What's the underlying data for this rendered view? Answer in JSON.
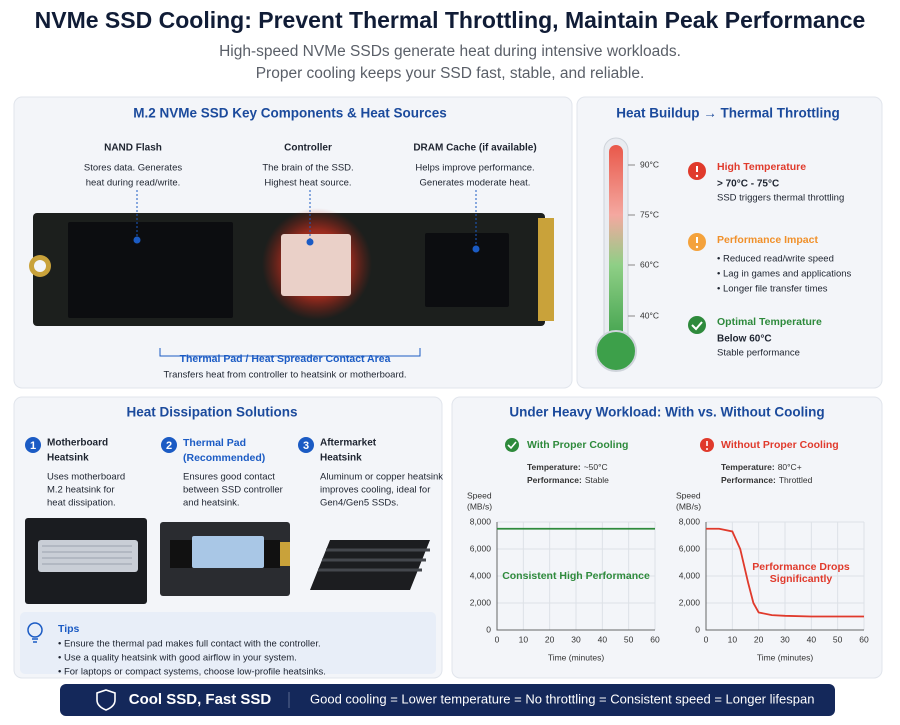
{
  "header": {
    "title": "NVMe SSD Cooling: Prevent Thermal Throttling, Maintain Peak Performance",
    "subtitle": [
      "High-speed NVMe SSDs generate heat during intensive workloads.",
      "Proper cooling keeps your SSD fast, stable, and reliable."
    ]
  },
  "components": {
    "title": "M.2 NVMe SSD Key Components & Heat Sources",
    "items": [
      {
        "name": "NAND Flash",
        "desc": [
          "Stores data. Generates",
          "heat during read/write."
        ]
      },
      {
        "name": "Controller",
        "desc": [
          "The brain of the SSD.",
          "Highest heat source."
        ]
      },
      {
        "name": "DRAM Cache (if available)",
        "desc": [
          "Helps improve performance.",
          "Generates moderate heat."
        ]
      }
    ],
    "callout": {
      "title": "Thermal Pad / Heat Spreader Contact Area",
      "desc": "Transfers heat from controller to heatsink or motherboard."
    }
  },
  "throttling": {
    "title": "Heat Buildup → Thermal Throttling",
    "scale": [
      "90°C",
      "75°C",
      "60°C",
      "40°C"
    ],
    "states": [
      {
        "title": "High Temperature",
        "range": "> 70°C - 75°C",
        "lines": [
          "SSD triggers thermal throttling"
        ]
      },
      {
        "title": "Performance Impact",
        "lines": [
          "• Reduced read/write speed",
          "• Lag in games and applications",
          "• Longer file transfer times"
        ]
      },
      {
        "title": "Optimal Temperature",
        "range": "Below 60°C",
        "lines": [
          "Stable performance"
        ]
      }
    ]
  },
  "solutions": {
    "title": "Heat Dissipation Solutions",
    "items": [
      {
        "number": "1",
        "title": [
          "Motherboard",
          "Heatsink"
        ],
        "desc": [
          "Uses motherboard",
          "M.2 heatsink for",
          "heat dissipation."
        ]
      },
      {
        "number": "2",
        "title": [
          "Thermal Pad",
          "(Recommended)"
        ],
        "desc": [
          "Ensures good contact",
          "between SSD controller",
          "and heatsink."
        ]
      },
      {
        "number": "3",
        "title": [
          "Aftermarket",
          "Heatsink"
        ],
        "desc": [
          "Aluminum or copper heatsink",
          "improves cooling, ideal for",
          "Gen4/Gen5 SSDs."
        ]
      }
    ],
    "tips": {
      "title": "Tips",
      "items": [
        "• Ensure the thermal pad makes full contact with the controller.",
        "• Use a quality heatsink with good airflow in your system.",
        "• For laptops or compact systems, choose low-profile heatsinks."
      ]
    }
  },
  "workload": {
    "title": "Under Heavy Workload: With vs. Without Cooling"
  },
  "chart_data": [
    {
      "type": "line",
      "title": "With Proper Cooling",
      "color": "#2e8a3c",
      "stats": [
        {
          "label": "Temperature:",
          "value": "~50°C"
        },
        {
          "label": "Performance:",
          "value": "Stable"
        }
      ],
      "y_label": [
        "Speed",
        "(MB/s)"
      ],
      "x_label": "Time (minutes)",
      "annotation": [
        "Consistent High Performance"
      ],
      "x": [
        0,
        10,
        20,
        30,
        40,
        50,
        60
      ],
      "values": [
        7500,
        7500,
        7500,
        7500,
        7500,
        7500,
        7500
      ],
      "xlim": [
        0,
        60
      ],
      "ylim": [
        0,
        8000
      ],
      "xticks": [
        0,
        10,
        20,
        30,
        40,
        50,
        60
      ],
      "yticks": [
        0,
        {
          "value": 2000,
          "label": "2,000"
        },
        {
          "value": 4000,
          "label": "4,000"
        },
        {
          "value": 6000,
          "label": "6,000"
        },
        {
          "value": 8000,
          "label": "8,000"
        }
      ],
      "grid": true
    },
    {
      "type": "line",
      "title": "Without Proper Cooling",
      "color": "#e03a2c",
      "stats": [
        {
          "label": "Temperature:",
          "value": "80°C+"
        },
        {
          "label": "Performance:",
          "value": "Throttled"
        }
      ],
      "y_label": [
        "Speed",
        "(MB/s)"
      ],
      "x_label": "Time (minutes)",
      "annotation": [
        "Performance Drops",
        "Significantly"
      ],
      "x": [
        0,
        5,
        10,
        13,
        16,
        18,
        20,
        25,
        30,
        40,
        50,
        60
      ],
      "values": [
        7500,
        7500,
        7300,
        6000,
        3500,
        2000,
        1300,
        1100,
        1050,
        1000,
        1000,
        1000
      ],
      "xlim": [
        0,
        60
      ],
      "ylim": [
        0,
        8000
      ],
      "xticks": [
        0,
        10,
        20,
        30,
        40,
        50,
        60
      ],
      "yticks": [
        0,
        {
          "value": 2000,
          "label": "2,000"
        },
        {
          "value": 4000,
          "label": "4,000"
        },
        {
          "value": 6000,
          "label": "6,000"
        },
        {
          "value": 8000,
          "label": "8,000"
        }
      ],
      "grid": true
    }
  ],
  "footer": {
    "badge": "Cool SSD, Fast SSD",
    "text": "Good cooling = Lower temperature = No throttling = Consistent speed = Longer lifespan"
  }
}
